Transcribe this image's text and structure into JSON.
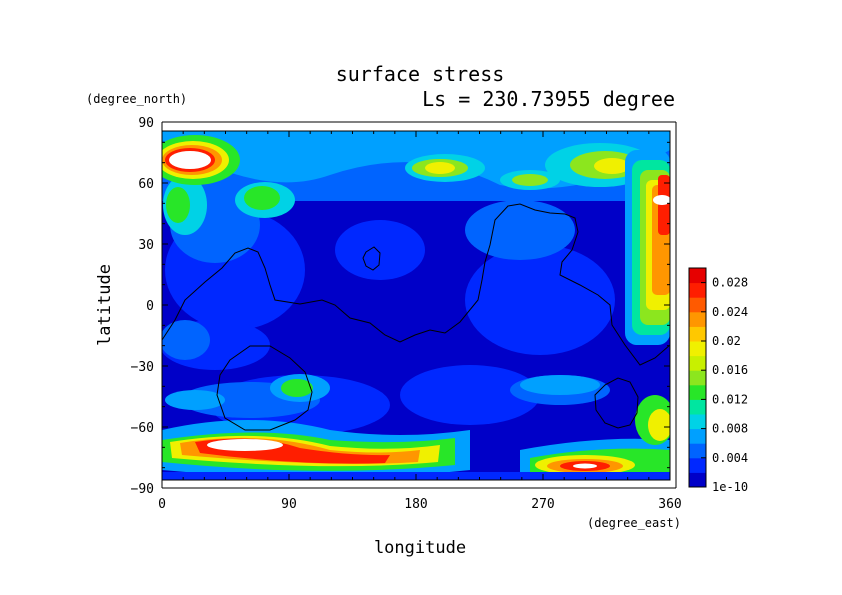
{
  "chart_data": {
    "type": "heatmap",
    "title": "surface stress",
    "subtitle": "Ls = 230.73955 degree",
    "xlabel": "longitude",
    "ylabel": "latitude",
    "x_unit": "(degree_east)",
    "y_unit": "(degree_north)",
    "xlim": [
      0,
      360
    ],
    "ylim": [
      -90,
      90
    ],
    "x_ticks": [
      "0",
      "90",
      "180",
      "270",
      "360"
    ],
    "y_ticks": [
      "90",
      "60",
      "30",
      "0",
      "−30",
      "−60",
      "−90"
    ],
    "colorbar": {
      "min": 0,
      "max": 0.03,
      "ticks": [
        "1e-10",
        "0.004",
        "0.008",
        "0.012",
        "0.016",
        "0.02",
        "0.024",
        "0.028"
      ],
      "colors": [
        "#0000c8",
        "#0028ff",
        "#0064ff",
        "#00a0ff",
        "#00d2e6",
        "#00e6a0",
        "#28e628",
        "#8ce61e",
        "#c8f000",
        "#f0f000",
        "#ffc800",
        "#ff9600",
        "#ff5a00",
        "#ff1e00",
        "#e60000"
      ]
    },
    "features": [
      {
        "region": "north polar band",
        "lat_range": [
          50,
          85
        ],
        "level": "0.010-0.024, patchy"
      },
      {
        "region": "NW high",
        "lon": [
          5,
          40
        ],
        "lat": [
          64,
          78
        ],
        "level": "above 0.030 (white)"
      },
      {
        "region": "east column",
        "lon": [
          335,
          360
        ],
        "lat": [
          -10,
          80
        ],
        "level": "0.016-0.030"
      },
      {
        "region": "southern storm band",
        "lon": [
          0,
          180
        ],
        "lat": [
          -78,
          -62
        ],
        "level": "0.020-0.030+"
      },
      {
        "region": "SE band",
        "lon": [
          260,
          360
        ],
        "lat": [
          -84,
          -70
        ],
        "level": "0.020-0.030+"
      },
      {
        "region": "equatorial / mid-latitudes",
        "lat_range": [
          -55,
          45
        ],
        "level": "0.000-0.006"
      }
    ],
    "grid": false,
    "legend_position": "right"
  }
}
